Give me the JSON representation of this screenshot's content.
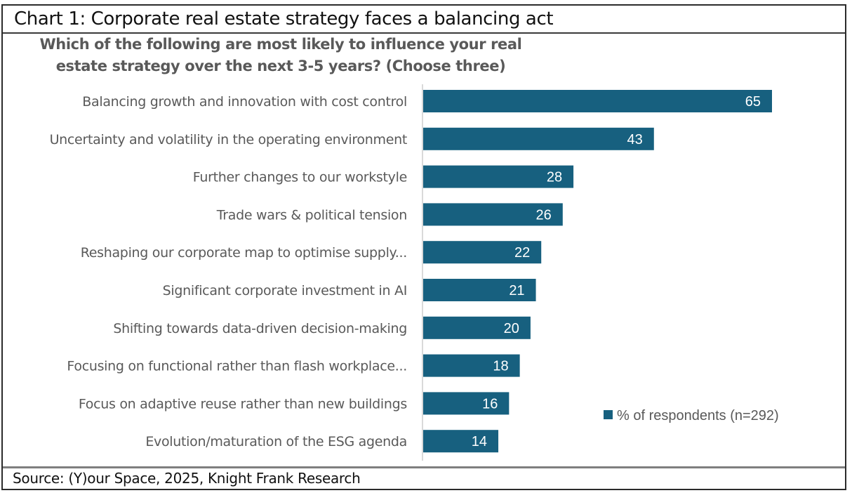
{
  "header": {
    "title": "Chart 1: Corporate real estate strategy faces a balancing act"
  },
  "footer": {
    "source": "Source: (Y)our Space, 2025, Knight Frank Research"
  },
  "colors": {
    "bar": "#17607f",
    "label_text": "#595959",
    "value_text": "#ffffff",
    "axis": "#d9d9d9"
  },
  "chart_data": {
    "type": "bar",
    "orientation": "horizontal",
    "title": "Which of the following are most likely to influence your real estate strategy over the next 3-5 years? (Choose three)",
    "title_lines": [
      "Which of the following are most likely to influence your real",
      "estate strategy over the next 3-5 years? (Choose three)"
    ],
    "xlabel": "",
    "ylabel": "",
    "xlim": [
      0,
      70
    ],
    "grid": false,
    "legend_position": "bottom-right",
    "categories": [
      "Balancing growth and innovation with cost control",
      "Uncertainty and volatility in the operating environment",
      "Further changes to our workstyle",
      "Trade wars & political tension",
      "Reshaping our corporate map to optimise supply...",
      "Significant corporate investment in AI",
      "Shifting towards data-driven decision-making",
      "Focusing on functional rather than flash workplace...",
      "Focus on adaptive reuse rather than new buildings",
      "Evolution/maturation of the ESG agenda"
    ],
    "series": [
      {
        "name": "% of respondents (n=292)",
        "values": [
          65,
          43,
          28,
          26,
          22,
          21,
          20,
          18,
          16,
          14
        ]
      }
    ]
  }
}
